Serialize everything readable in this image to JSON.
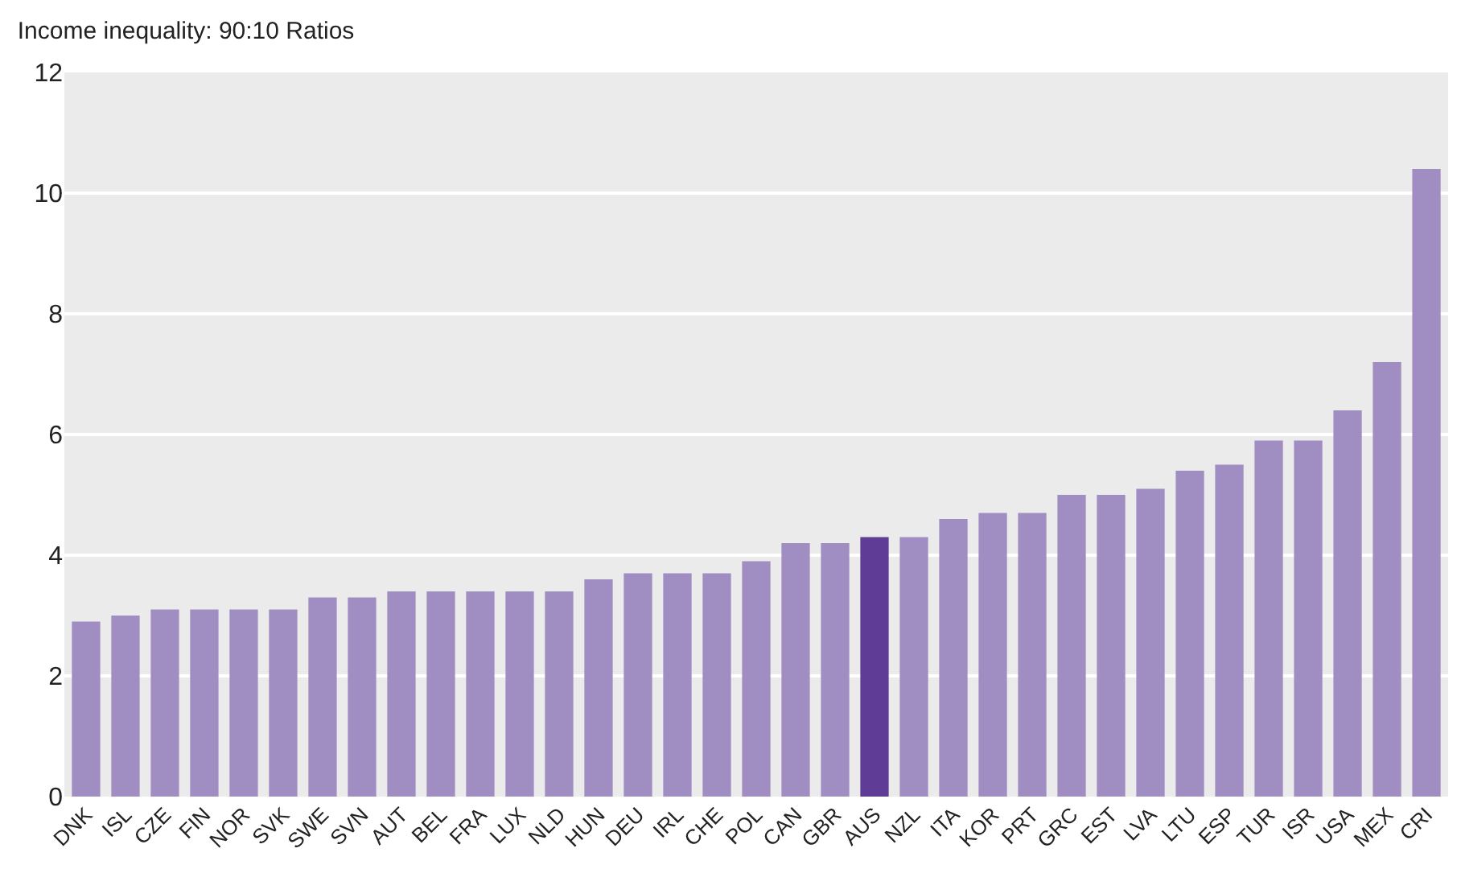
{
  "chart_data": {
    "type": "bar",
    "title": "Income inequality: 90:10 Ratios",
    "categories": [
      "DNK",
      "ISL",
      "CZE",
      "FIN",
      "NOR",
      "SVK",
      "SWE",
      "SVN",
      "AUT",
      "BEL",
      "FRA",
      "LUX",
      "NLD",
      "HUN",
      "DEU",
      "IRL",
      "CHE",
      "POL",
      "CAN",
      "GBR",
      "AUS",
      "NZL",
      "ITA",
      "KOR",
      "PRT",
      "GRC",
      "EST",
      "LVA",
      "LTU",
      "ESP",
      "TUR",
      "ISR",
      "USA",
      "MEX",
      "CRI"
    ],
    "values": [
      2.9,
      3.0,
      3.1,
      3.1,
      3.1,
      3.1,
      3.3,
      3.3,
      3.4,
      3.4,
      3.4,
      3.4,
      3.4,
      3.6,
      3.7,
      3.7,
      3.7,
      3.9,
      4.2,
      4.2,
      4.3,
      4.3,
      4.6,
      4.7,
      4.7,
      5.0,
      5.0,
      5.1,
      5.4,
      5.5,
      5.9,
      5.9,
      6.4,
      7.2,
      10.4
    ],
    "colors": [
      "#a08ec3",
      "#a08ec3",
      "#a08ec3",
      "#a08ec3",
      "#a08ec3",
      "#a08ec3",
      "#a08ec3",
      "#a08ec3",
      "#a08ec3",
      "#a08ec3",
      "#a08ec3",
      "#a08ec3",
      "#a08ec3",
      "#a08ec3",
      "#a08ec3",
      "#a08ec3",
      "#a08ec3",
      "#a08ec3",
      "#a08ec3",
      "#a08ec3",
      "#5f3d96",
      "#a08ec3",
      "#a08ec3",
      "#a08ec3",
      "#a08ec3",
      "#a08ec3",
      "#a08ec3",
      "#a08ec3",
      "#a08ec3",
      "#a08ec3",
      "#a08ec3",
      "#a08ec3",
      "#a08ec3",
      "#a08ec3",
      "#a08ec3"
    ],
    "ylim": [
      0,
      12
    ],
    "yticks": [
      0,
      2,
      4,
      6,
      8,
      10,
      12
    ],
    "grid": "y"
  }
}
